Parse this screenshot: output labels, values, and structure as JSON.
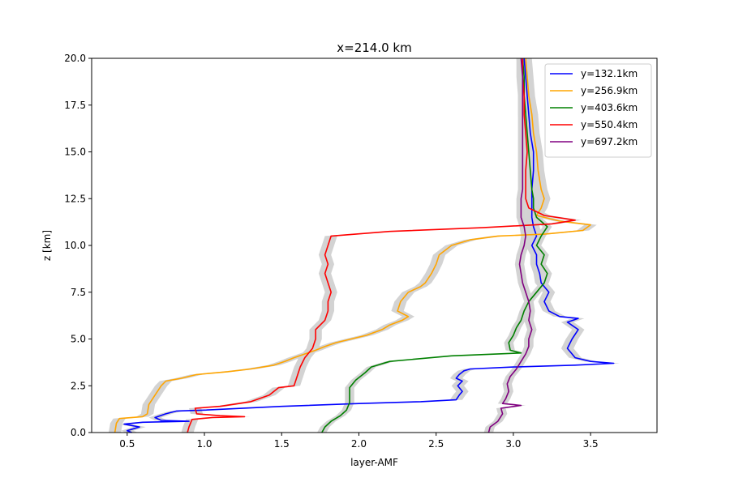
{
  "chart_data": {
    "type": "line",
    "title": "x=214.0 km",
    "xlabel": "layer-AMF",
    "ylabel": "z [km]",
    "xlim": [
      0.27,
      3.93
    ],
    "ylim": [
      0,
      20
    ],
    "x_ticks": [
      0.5,
      1.0,
      1.5,
      2.0,
      2.5,
      3.0,
      3.5
    ],
    "x_tick_labels": [
      "0.5",
      "1.0",
      "1.5",
      "2.0",
      "2.5",
      "3.0",
      "3.5"
    ],
    "y_ticks": [
      0,
      2.5,
      5,
      7.5,
      10,
      12.5,
      15,
      17.5,
      20
    ],
    "y_tick_labels": [
      "0.0",
      "2.5",
      "5.0",
      "7.5",
      "10.0",
      "12.5",
      "15.0",
      "17.5",
      "20.0"
    ],
    "grid": false,
    "legend_position": "top-right",
    "band_color": "#d3d3d3",
    "series": [
      {
        "name": "y=132.1km",
        "color": "#0000ff",
        "band_width": 0.04,
        "points": [
          [
            0.53,
            0.0
          ],
          [
            0.5,
            0.1
          ],
          [
            0.58,
            0.3
          ],
          [
            0.48,
            0.45
          ],
          [
            0.6,
            0.55
          ],
          [
            0.9,
            0.6
          ],
          [
            0.72,
            0.65
          ],
          [
            0.68,
            0.8
          ],
          [
            0.75,
            1.0
          ],
          [
            0.82,
            1.15
          ],
          [
            1.0,
            1.2
          ],
          [
            1.5,
            1.4
          ],
          [
            2.0,
            1.55
          ],
          [
            2.4,
            1.65
          ],
          [
            2.63,
            1.75
          ],
          [
            2.65,
            2.0
          ],
          [
            2.67,
            2.2
          ],
          [
            2.64,
            2.5
          ],
          [
            2.67,
            2.75
          ],
          [
            2.63,
            2.9
          ],
          [
            2.65,
            3.1
          ],
          [
            2.68,
            3.3
          ],
          [
            2.72,
            3.4
          ],
          [
            3.0,
            3.5
          ],
          [
            3.4,
            3.6
          ],
          [
            3.65,
            3.7
          ],
          [
            3.5,
            3.8
          ],
          [
            3.4,
            4.0
          ],
          [
            3.37,
            4.3
          ],
          [
            3.35,
            4.5
          ],
          [
            3.38,
            5.0
          ],
          [
            3.42,
            5.5
          ],
          [
            3.35,
            5.9
          ],
          [
            3.42,
            6.1
          ],
          [
            3.3,
            6.2
          ],
          [
            3.23,
            6.5
          ],
          [
            3.2,
            7.0
          ],
          [
            3.23,
            7.5
          ],
          [
            3.18,
            8.0
          ],
          [
            3.17,
            8.5
          ],
          [
            3.15,
            9.0
          ],
          [
            3.15,
            9.5
          ],
          [
            3.12,
            10.0
          ],
          [
            3.15,
            10.5
          ],
          [
            3.13,
            11.0
          ],
          [
            3.12,
            11.5
          ],
          [
            3.12,
            12.0
          ],
          [
            3.12,
            12.5
          ],
          [
            3.12,
            13.0
          ],
          [
            3.13,
            14.0
          ],
          [
            3.13,
            15.0
          ],
          [
            3.11,
            16.0
          ],
          [
            3.1,
            17.0
          ],
          [
            3.09,
            18.0
          ],
          [
            3.08,
            19.0
          ],
          [
            3.07,
            20.0
          ]
        ]
      },
      {
        "name": "y=256.9km",
        "color": "#ffa500",
        "band_width": 0.04,
        "points": [
          [
            0.42,
            0.0
          ],
          [
            0.43,
            0.5
          ],
          [
            0.45,
            0.75
          ],
          [
            0.6,
            0.85
          ],
          [
            0.63,
            1.0
          ],
          [
            0.64,
            1.5
          ],
          [
            0.68,
            2.0
          ],
          [
            0.72,
            2.5
          ],
          [
            0.75,
            2.75
          ],
          [
            0.85,
            2.9
          ],
          [
            0.95,
            3.1
          ],
          [
            1.15,
            3.25
          ],
          [
            1.3,
            3.4
          ],
          [
            1.45,
            3.6
          ],
          [
            1.52,
            3.8
          ],
          [
            1.58,
            4.0
          ],
          [
            1.65,
            4.2
          ],
          [
            1.72,
            4.4
          ],
          [
            1.78,
            4.6
          ],
          [
            1.85,
            4.8
          ],
          [
            1.95,
            5.0
          ],
          [
            2.05,
            5.2
          ],
          [
            2.15,
            5.5
          ],
          [
            2.2,
            5.75
          ],
          [
            2.28,
            6.0
          ],
          [
            2.32,
            6.2
          ],
          [
            2.25,
            6.5
          ],
          [
            2.27,
            7.0
          ],
          [
            2.32,
            7.5
          ],
          [
            2.4,
            7.8
          ],
          [
            2.43,
            8.0
          ],
          [
            2.47,
            8.5
          ],
          [
            2.5,
            9.0
          ],
          [
            2.52,
            9.5
          ],
          [
            2.6,
            10.0
          ],
          [
            2.72,
            10.3
          ],
          [
            2.9,
            10.5
          ],
          [
            3.2,
            10.6
          ],
          [
            3.45,
            10.8
          ],
          [
            3.5,
            11.1
          ],
          [
            3.3,
            11.3
          ],
          [
            3.15,
            11.6
          ],
          [
            3.18,
            12.0
          ],
          [
            3.2,
            12.5
          ],
          [
            3.18,
            13.0
          ],
          [
            3.16,
            14.0
          ],
          [
            3.15,
            15.0
          ],
          [
            3.13,
            16.0
          ],
          [
            3.12,
            17.0
          ],
          [
            3.1,
            18.0
          ],
          [
            3.09,
            19.0
          ],
          [
            3.08,
            20.0
          ]
        ]
      },
      {
        "name": "y=403.6km",
        "color": "#008000",
        "band_width": 0.03,
        "points": [
          [
            1.76,
            0.0
          ],
          [
            1.78,
            0.3
          ],
          [
            1.82,
            0.6
          ],
          [
            1.88,
            0.9
          ],
          [
            1.92,
            1.2
          ],
          [
            1.94,
            1.6
          ],
          [
            1.94,
            2.0
          ],
          [
            1.94,
            2.4
          ],
          [
            1.98,
            2.8
          ],
          [
            2.04,
            3.2
          ],
          [
            2.08,
            3.5
          ],
          [
            2.2,
            3.8
          ],
          [
            2.6,
            4.1
          ],
          [
            3.05,
            4.25
          ],
          [
            2.98,
            4.4
          ],
          [
            2.97,
            4.8
          ],
          [
            3.0,
            5.2
          ],
          [
            3.02,
            5.6
          ],
          [
            3.05,
            6.0
          ],
          [
            3.07,
            6.5
          ],
          [
            3.1,
            7.0
          ],
          [
            3.15,
            7.5
          ],
          [
            3.2,
            8.0
          ],
          [
            3.22,
            8.5
          ],
          [
            3.18,
            9.0
          ],
          [
            3.2,
            9.5
          ],
          [
            3.15,
            10.0
          ],
          [
            3.18,
            10.5
          ],
          [
            3.22,
            11.0
          ],
          [
            3.15,
            11.5
          ],
          [
            3.13,
            12.0
          ],
          [
            3.13,
            12.5
          ],
          [
            3.12,
            13.0
          ],
          [
            3.11,
            14.0
          ],
          [
            3.1,
            15.0
          ],
          [
            3.09,
            16.0
          ],
          [
            3.08,
            17.0
          ],
          [
            3.07,
            18.0
          ],
          [
            3.07,
            19.0
          ],
          [
            3.06,
            20.0
          ]
        ]
      },
      {
        "name": "y=550.4km",
        "color": "#ff0000",
        "band_width": 0.04,
        "points": [
          [
            0.89,
            0.0
          ],
          [
            0.9,
            0.3
          ],
          [
            0.92,
            0.7
          ],
          [
            1.05,
            0.8
          ],
          [
            1.26,
            0.85
          ],
          [
            1.1,
            0.9
          ],
          [
            0.95,
            1.0
          ],
          [
            0.94,
            1.3
          ],
          [
            1.1,
            1.4
          ],
          [
            1.3,
            1.65
          ],
          [
            1.42,
            2.0
          ],
          [
            1.48,
            2.4
          ],
          [
            1.58,
            2.5
          ],
          [
            1.6,
            3.0
          ],
          [
            1.62,
            3.5
          ],
          [
            1.65,
            4.0
          ],
          [
            1.7,
            4.5
          ],
          [
            1.72,
            5.0
          ],
          [
            1.72,
            5.5
          ],
          [
            1.78,
            6.0
          ],
          [
            1.8,
            6.5
          ],
          [
            1.8,
            7.0
          ],
          [
            1.82,
            7.5
          ],
          [
            1.8,
            8.0
          ],
          [
            1.78,
            8.5
          ],
          [
            1.8,
            9.0
          ],
          [
            1.78,
            9.5
          ],
          [
            1.8,
            10.0
          ],
          [
            1.82,
            10.5
          ],
          [
            2.2,
            10.75
          ],
          [
            2.8,
            10.95
          ],
          [
            3.25,
            11.15
          ],
          [
            3.4,
            11.35
          ],
          [
            3.2,
            11.6
          ],
          [
            3.15,
            11.8
          ],
          [
            3.1,
            12.0
          ],
          [
            3.08,
            12.5
          ],
          [
            3.08,
            13.0
          ],
          [
            3.08,
            14.0
          ],
          [
            3.09,
            15.0
          ],
          [
            3.08,
            16.0
          ],
          [
            3.07,
            17.0
          ],
          [
            3.07,
            18.0
          ],
          [
            3.06,
            19.0
          ],
          [
            3.06,
            20.0
          ]
        ]
      },
      {
        "name": "y=697.2km",
        "color": "#800080",
        "band_width": 0.03,
        "points": [
          [
            2.84,
            0.0
          ],
          [
            2.85,
            0.3
          ],
          [
            2.9,
            0.6
          ],
          [
            2.93,
            1.0
          ],
          [
            2.92,
            1.3
          ],
          [
            3.05,
            1.45
          ],
          [
            2.93,
            1.55
          ],
          [
            2.95,
            1.8
          ],
          [
            2.97,
            2.2
          ],
          [
            2.96,
            2.6
          ],
          [
            2.98,
            3.0
          ],
          [
            3.02,
            3.4
          ],
          [
            3.05,
            3.8
          ],
          [
            3.08,
            4.2
          ],
          [
            3.1,
            4.6
          ],
          [
            3.1,
            5.0
          ],
          [
            3.12,
            5.5
          ],
          [
            3.1,
            6.0
          ],
          [
            3.11,
            6.5
          ],
          [
            3.1,
            7.0
          ],
          [
            3.08,
            7.5
          ],
          [
            3.06,
            8.0
          ],
          [
            3.05,
            8.5
          ],
          [
            3.04,
            9.0
          ],
          [
            3.05,
            9.5
          ],
          [
            3.07,
            10.0
          ],
          [
            3.08,
            10.5
          ],
          [
            3.07,
            11.0
          ],
          [
            3.05,
            11.5
          ],
          [
            3.05,
            12.0
          ],
          [
            3.05,
            12.5
          ],
          [
            3.06,
            13.0
          ],
          [
            3.06,
            14.0
          ],
          [
            3.06,
            15.0
          ],
          [
            3.06,
            16.0
          ],
          [
            3.06,
            17.0
          ],
          [
            3.06,
            18.0
          ],
          [
            3.06,
            19.0
          ],
          [
            3.05,
            20.0
          ]
        ]
      }
    ]
  }
}
